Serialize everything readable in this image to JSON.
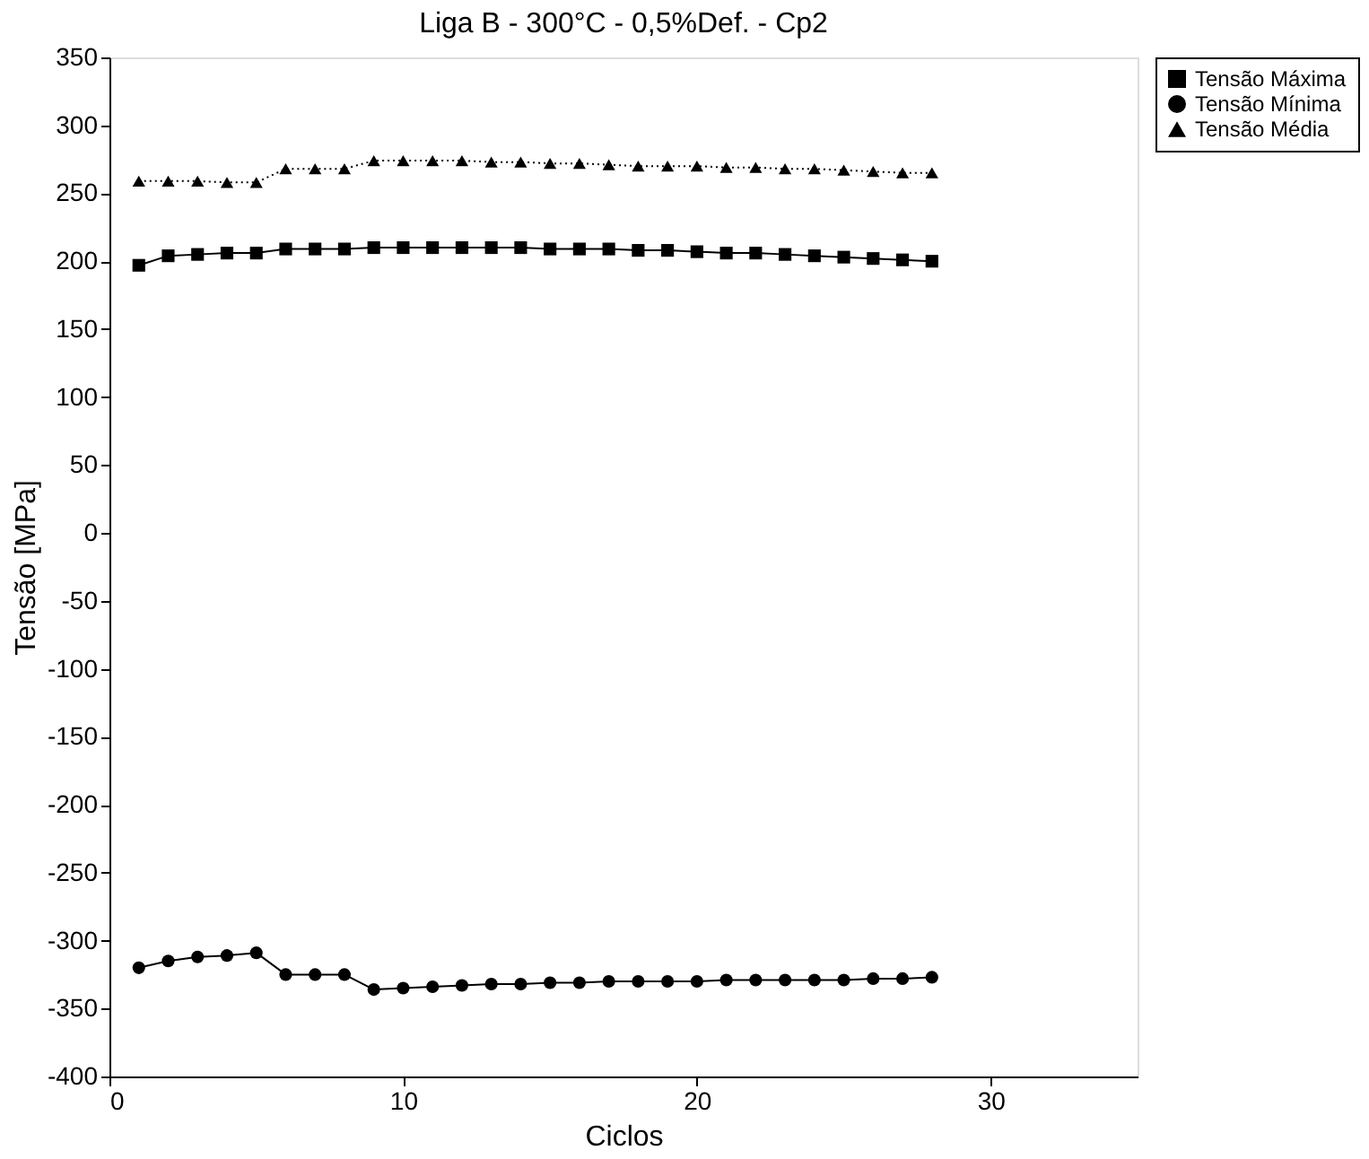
{
  "chart_data": {
    "type": "line",
    "title": "Liga B - 300°C - 0,5%Def. - Cp2",
    "xlabel": "Ciclos",
    "ylabel": "Tensão [MPa]",
    "x": [
      1,
      2,
      3,
      4,
      5,
      6,
      7,
      8,
      9,
      10,
      11,
      12,
      13,
      14,
      15,
      16,
      17,
      18,
      19,
      20,
      21,
      22,
      23,
      24,
      25,
      26,
      27,
      28
    ],
    "series": [
      {
        "name": "Tensão Máxima",
        "color": "#000000",
        "marker": "square",
        "line_style": "solid",
        "values": [
          197,
          204,
          205,
          206,
          206,
          209,
          209,
          209,
          210,
          210,
          210,
          210,
          210,
          210,
          209,
          209,
          209,
          208,
          208,
          207,
          206,
          206,
          205,
          204,
          203,
          202,
          201,
          200
        ]
      },
      {
        "name": "Tensão Mínima",
        "color": "#000000",
        "marker": "circle",
        "line_style": "solid",
        "values": [
          -320,
          -315,
          -312,
          -311,
          -309,
          -325,
          -325,
          -325,
          -336,
          -335,
          -334,
          -333,
          -332,
          -332,
          -331,
          -331,
          -330,
          -330,
          -330,
          -330,
          -329,
          -329,
          -329,
          -329,
          -329,
          -328,
          -328,
          -327
        ]
      },
      {
        "name": "Tensão Média",
        "color": "#000000",
        "marker": "triangle",
        "line_style": "dotted",
        "values": [
          259,
          259,
          259,
          258,
          258,
          268,
          268,
          268,
          274,
          274,
          274,
          274,
          273,
          273,
          272,
          272,
          271,
          270,
          270,
          270,
          269,
          269,
          268,
          268,
          267,
          266,
          265,
          265
        ]
      }
    ],
    "xlim": [
      0,
      35
    ],
    "xticks": [
      0,
      10,
      20,
      30
    ],
    "ylim": [
      -400,
      350
    ],
    "yticks": [
      -400,
      -350,
      -300,
      -250,
      -200,
      -150,
      -100,
      -50,
      0,
      50,
      100,
      150,
      200,
      250,
      300,
      350
    ],
    "grid": false,
    "legend": "right"
  }
}
